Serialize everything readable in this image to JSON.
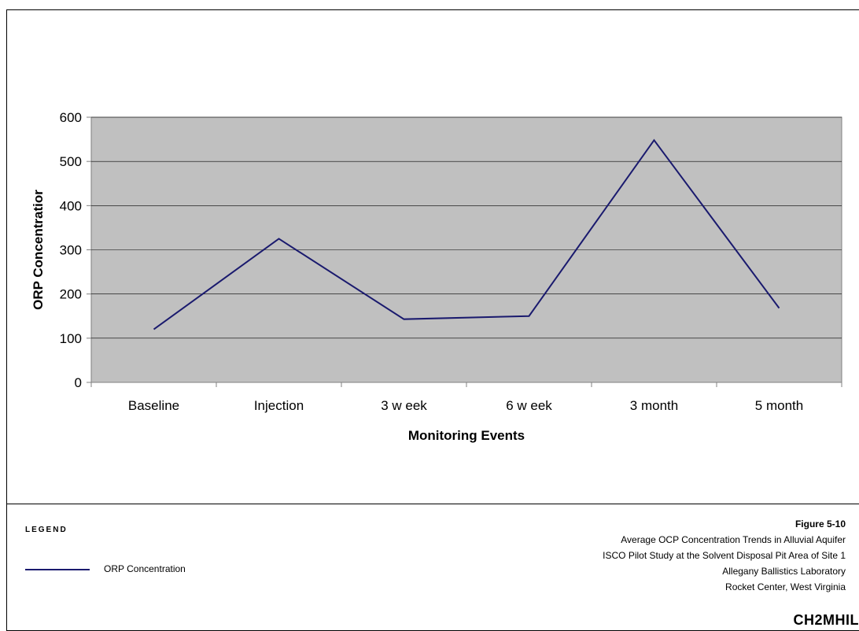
{
  "chart_data": {
    "type": "line",
    "title": "",
    "xlabel": "Monitoring Events",
    "ylabel": "ORP Concentratior",
    "categories": [
      "Baseline",
      "Injection",
      "3 w eek",
      "6 w eek",
      "3 month",
      "5 month"
    ],
    "series": [
      {
        "name": "ORP Concentration",
        "values": [
          120,
          325,
          143,
          150,
          548,
          168
        ],
        "color": "#1a1a6e"
      }
    ],
    "ylim": [
      0,
      600
    ],
    "yticks": [
      0,
      100,
      200,
      300,
      400,
      500,
      600
    ],
    "grid": true,
    "plot_background": "#c0c0c0",
    "gridline_color": "#000000",
    "legend_position": "bottom-left"
  },
  "legend": {
    "heading": "LEGEND",
    "item_label": "ORP Concentration"
  },
  "title_block": {
    "figure_number": "Figure 5-10",
    "line1": "Average OCP Concentration Trends in Alluvial Aquifer",
    "line2": "ISCO Pilot Study at the Solvent Disposal Pit Area of Site 1",
    "line3": "Allegany Ballistics Laboratory",
    "line4": "Rocket Center, West Virginia"
  },
  "logo_text": "CH2MHIL"
}
